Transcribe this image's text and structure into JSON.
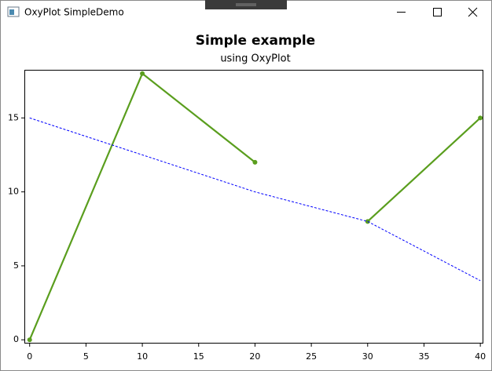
{
  "window": {
    "title": "OxyPlot SimpleDemo"
  },
  "chart_data": {
    "type": "line",
    "title": "Simple example",
    "subtitle": "using OxyPlot",
    "xlim": [
      -0.4,
      40.2
    ],
    "ylim": [
      -0.2,
      18.2
    ],
    "xticks": [
      0,
      5,
      10,
      15,
      20,
      25,
      30,
      35,
      40
    ],
    "yticks": [
      0,
      5,
      10,
      15
    ],
    "series": [
      {
        "color": "#5a9e1e",
        "dashed": false,
        "markers": true,
        "x": [
          0,
          10,
          20,
          null,
          30,
          40
        ],
        "values": [
          0,
          18,
          12,
          null,
          8,
          15
        ]
      },
      {
        "color": "#0000ff",
        "dashed": true,
        "markers": false,
        "x": [
          0,
          20,
          30,
          40
        ],
        "values": [
          15,
          10,
          8,
          4
        ]
      }
    ]
  }
}
